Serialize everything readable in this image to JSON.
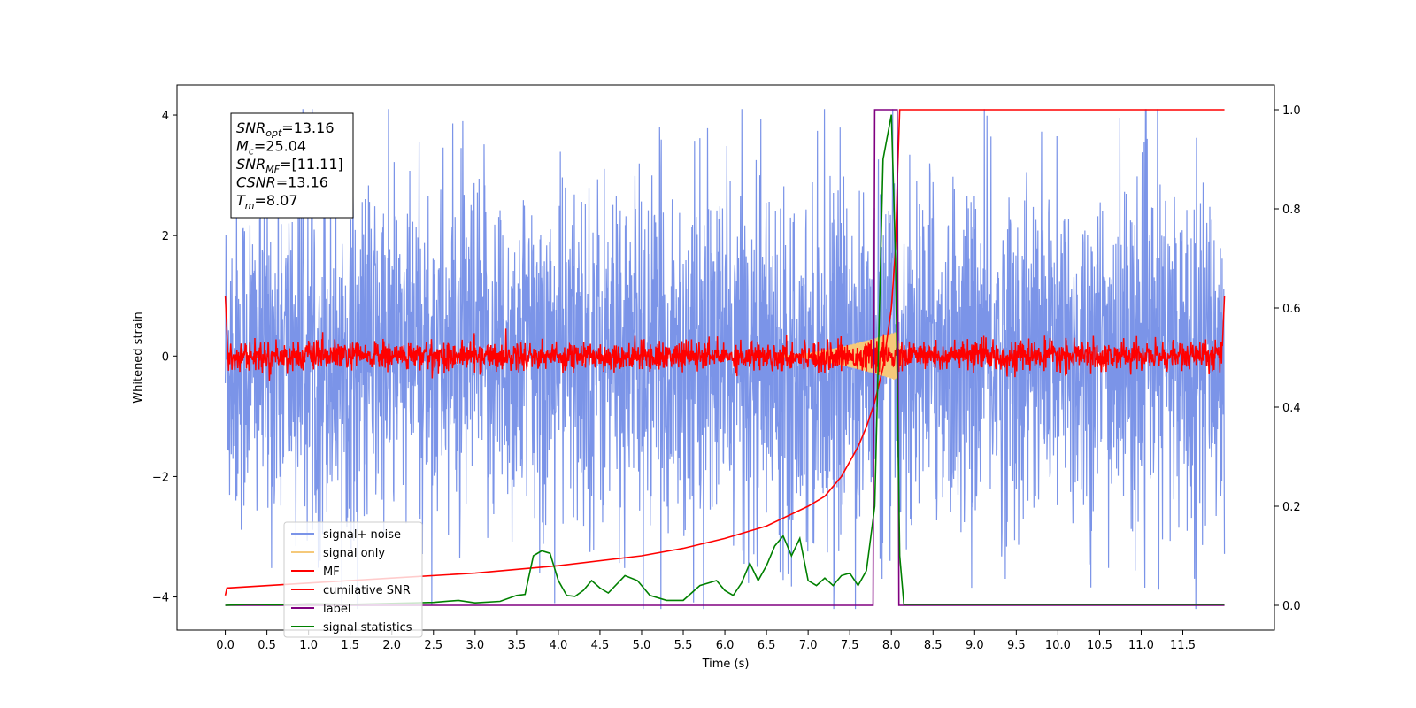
{
  "chart_data": {
    "type": "line",
    "xlabel": "Time (s)",
    "ylabel": "Whitened strain",
    "xlim": [
      -0.58,
      12.6
    ],
    "ylim": [
      -4.55,
      4.5
    ],
    "y2lim": [
      -0.05,
      1.05
    ],
    "x_ticks": [
      "0.0",
      "0.5",
      "1.0",
      "1.5",
      "2.0",
      "2.5",
      "3.0",
      "3.5",
      "4.0",
      "4.5",
      "5.0",
      "5.5",
      "6.0",
      "6.5",
      "7.0",
      "7.5",
      "8.0",
      "8.5",
      "9.0",
      "9.5",
      "10.0",
      "10.5",
      "11.0",
      "11.5"
    ],
    "y_ticks": [
      "4",
      "2",
      "0",
      "−2",
      "−4"
    ],
    "y2_ticks": [
      "1.0",
      "0.8",
      "0.6",
      "0.4",
      "0.2",
      "0.0"
    ],
    "grid": false,
    "legend_position": "lower-left",
    "info_box": {
      "lines": [
        {
          "base": "SNR",
          "sub": "opt",
          "value": "=13.16"
        },
        {
          "base": "M",
          "sub": "c",
          "value": "=25.04"
        },
        {
          "base": "SNR",
          "sub": "MF",
          "value": "=[11.11]"
        },
        {
          "base": "CSNR",
          "sub": "",
          "value": "=13.16"
        },
        {
          "base": "T",
          "sub": "m",
          "value": "=8.07"
        }
      ]
    },
    "series": [
      {
        "name": "signal+ noise",
        "color": "#7b94e8",
        "axis": "left",
        "noise_amplitude": 1.45,
        "x_range": [
          0.0,
          12.0
        ]
      },
      {
        "name": "signal only",
        "color": "#f5c97a",
        "axis": "left",
        "chirp_peak_time": 8.05,
        "chirp_peak_amplitude": 0.4
      },
      {
        "name": "MF",
        "color": "#ff0000",
        "axis": "left",
        "noise_amplitude": 0.12,
        "x_range": [
          0.0,
          12.0
        ]
      },
      {
        "name": "cumilative SNR",
        "color": "#ff0000",
        "axis": "right",
        "x": [
          0.0,
          0.02,
          1.0,
          2.0,
          3.0,
          4.0,
          5.0,
          5.5,
          6.0,
          6.5,
          7.0,
          7.2,
          7.4,
          7.6,
          7.7,
          7.8,
          7.9,
          8.0,
          8.05,
          8.07,
          8.1,
          12.0
        ],
        "values": [
          0.02,
          0.035,
          0.045,
          0.055,
          0.065,
          0.08,
          0.1,
          0.115,
          0.135,
          0.16,
          0.2,
          0.22,
          0.26,
          0.32,
          0.36,
          0.41,
          0.48,
          0.6,
          0.72,
          0.85,
          1.0,
          1.0
        ]
      },
      {
        "name": "label",
        "color": "#800080",
        "axis": "right",
        "x": [
          0.0,
          7.78,
          7.8,
          8.07,
          8.09,
          12.0
        ],
        "values": [
          0.0,
          0.0,
          1.0,
          1.0,
          0.0,
          0.0
        ]
      },
      {
        "name": "signal statistics",
        "color": "#008000",
        "axis": "right",
        "x": [
          0.0,
          0.3,
          0.6,
          1.0,
          1.5,
          2.0,
          2.5,
          2.8,
          3.0,
          3.3,
          3.5,
          3.6,
          3.7,
          3.8,
          3.9,
          4.0,
          4.1,
          4.2,
          4.3,
          4.4,
          4.5,
          4.6,
          4.8,
          4.95,
          5.1,
          5.3,
          5.5,
          5.7,
          5.9,
          6.0,
          6.1,
          6.2,
          6.3,
          6.4,
          6.5,
          6.6,
          6.7,
          6.8,
          6.9,
          7.0,
          7.1,
          7.2,
          7.3,
          7.4,
          7.5,
          7.6,
          7.7,
          7.8,
          7.9,
          8.0,
          8.05,
          8.1,
          8.15,
          12.0
        ],
        "values": [
          0.0,
          0.002,
          0.001,
          0.003,
          0.002,
          0.004,
          0.006,
          0.01,
          0.005,
          0.008,
          0.02,
          0.022,
          0.1,
          0.11,
          0.105,
          0.05,
          0.02,
          0.018,
          0.03,
          0.05,
          0.035,
          0.025,
          0.06,
          0.05,
          0.02,
          0.01,
          0.01,
          0.04,
          0.05,
          0.03,
          0.02,
          0.045,
          0.085,
          0.05,
          0.08,
          0.12,
          0.14,
          0.1,
          0.135,
          0.05,
          0.04,
          0.055,
          0.04,
          0.06,
          0.065,
          0.04,
          0.07,
          0.2,
          0.9,
          0.99,
          0.7,
          0.1,
          0.002,
          0.002
        ]
      }
    ]
  }
}
